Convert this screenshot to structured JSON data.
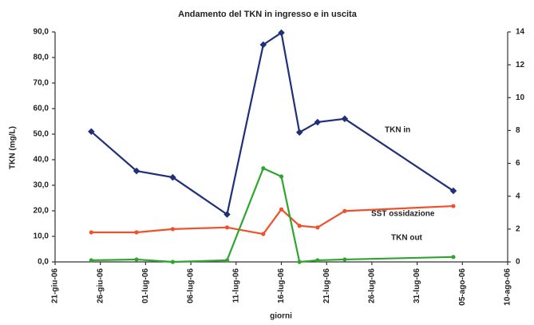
{
  "chart_data": {
    "type": "line",
    "title": "Andamento del TKN in ingresso e in uscita",
    "xlabel": "giorni",
    "ylabel": "TKN (mg/L)",
    "x": [
      "2006-06-25",
      "2006-06-30",
      "2006-07-04",
      "2006-07-10",
      "2006-07-14",
      "2006-07-16",
      "2006-07-18",
      "2006-07-20",
      "2006-07-23",
      "2006-08-04"
    ],
    "series": [
      {
        "name": "TKN in",
        "color": "#1f2f7a",
        "values": [
          51,
          35.6,
          33.1,
          18.6,
          85,
          89.7,
          50.7,
          54.7,
          56,
          27.8
        ]
      },
      {
        "name": "SST ossidazione",
        "color": "#f0502a",
        "axis": "y2",
        "values": [
          1.8,
          1.8,
          2.0,
          2.1,
          1.7,
          3.2,
          2.2,
          2.1,
          3.1,
          3.4
        ]
      },
      {
        "name": "TKN out",
        "color": "#2fa52f",
        "axis": "y2",
        "values": [
          0.1,
          0.15,
          0,
          0.1,
          5.7,
          5.2,
          0,
          0.1,
          0.15,
          0.3
        ]
      }
    ],
    "xlim": [
      "2006-06-21",
      "2006-08-10"
    ],
    "xticks": [
      {
        "value": "2006-06-21",
        "label": "21-giu-06"
      },
      {
        "value": "2006-06-26",
        "label": "26-giu-06"
      },
      {
        "value": "2006-07-01",
        "label": "01-lug-06"
      },
      {
        "value": "2006-07-06",
        "label": "06-lug-06"
      },
      {
        "value": "2006-07-11",
        "label": "11-lug-06"
      },
      {
        "value": "2006-07-16",
        "label": "16-lug-06"
      },
      {
        "value": "2006-07-21",
        "label": "21-lug-06"
      },
      {
        "value": "2006-07-26",
        "label": "26-lug-06"
      },
      {
        "value": "2006-07-31",
        "label": "31-lug-06"
      },
      {
        "value": "2006-08-05",
        "label": "05-ago-06"
      },
      {
        "value": "2006-08-10",
        "label": "10-ago-06"
      }
    ],
    "ylim": [
      0,
      90
    ],
    "yticks": [
      {
        "value": 0,
        "label": "0,0"
      },
      {
        "value": 10,
        "label": "10,0"
      },
      {
        "value": 20,
        "label": "20,0"
      },
      {
        "value": 30,
        "label": "30,0"
      },
      {
        "value": 40,
        "label": "40,0"
      },
      {
        "value": 50,
        "label": "50,0"
      },
      {
        "value": 60,
        "label": "60,0"
      },
      {
        "value": 70,
        "label": "70,0"
      },
      {
        "value": 80,
        "label": "80,0"
      },
      {
        "value": 90,
        "label": "90,0"
      }
    ],
    "y2lim": [
      0,
      14
    ],
    "y2ticks": [
      0,
      2,
      4,
      6,
      8,
      10,
      12,
      14
    ],
    "grid": false
  }
}
